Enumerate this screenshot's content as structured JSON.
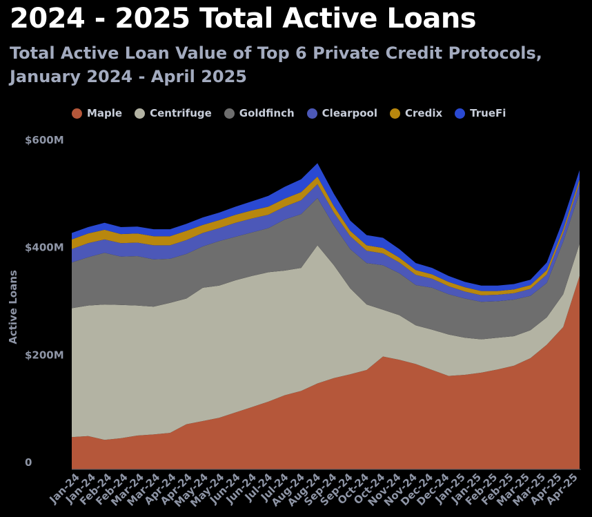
{
  "chart_data": {
    "type": "area",
    "stacked": true,
    "title": "2024 - 2025 Total Active Loans",
    "subtitle": "Total Active Loan Value of Top 6 Private Credit Protocols, January 2024 - April 2025",
    "ylabel": "Active Loans",
    "xlabel": "",
    "ylim": [
      0,
      600
    ],
    "y_unit": "$M",
    "y_ticks": [
      {
        "value": 0,
        "label": "0"
      },
      {
        "value": 200,
        "label": "$200M"
      },
      {
        "value": 400,
        "label": "$400M"
      },
      {
        "value": 600,
        "label": "$600M"
      }
    ],
    "grid": false,
    "legend_position": "top",
    "x_ticks": [
      "Jan-24",
      "Jan-24",
      "Feb-24",
      "Feb-24",
      "Mar-24",
      "Mar-24",
      "Apr-24",
      "Apr-24",
      "May-24",
      "May-24",
      "Jun-24",
      "Jun-24",
      "Jul-24",
      "Jul-24",
      "Aug-24",
      "Aug-24",
      "Sep-24",
      "Sep-24",
      "Oct-24",
      "Oct-24",
      "Nov-24",
      "Nov-24",
      "Dec-24",
      "Dec-24",
      "Jan-25",
      "Jan-25",
      "Feb-25",
      "Feb-25",
      "Mar-25",
      "Mar-25",
      "Apr-25",
      "Apr-25"
    ],
    "series": [
      {
        "name": "Maple",
        "color": "#b5573a",
        "values": [
          60,
          62,
          55,
          58,
          63,
          65,
          68,
          84,
          90,
          96,
          106,
          116,
          126,
          138,
          146,
          160,
          170,
          177,
          185,
          210,
          204,
          196,
          185,
          174,
          176,
          180,
          186,
          193,
          207,
          232,
          265,
          360
        ]
      },
      {
        "name": "Centrifuge",
        "color": "#b3b3a3",
        "values": [
          240,
          243,
          252,
          248,
          242,
          238,
          242,
          234,
          248,
          246,
          246,
          244,
          241,
          232,
          229,
          257,
          210,
          160,
          122,
          87,
          83,
          72,
          75,
          77,
          69,
          62,
          59,
          55,
          52,
          51,
          61,
          60
        ]
      },
      {
        "name": "Goldfinch",
        "color": "#6e6e6e",
        "values": [
          85,
          90,
          96,
          90,
          92,
          88,
          82,
          83,
          77,
          83,
          81,
          81,
          82,
          95,
          100,
          88,
          74,
          73,
          77,
          83,
          78,
          75,
          78,
          75,
          73,
          70,
          68,
          68,
          64,
          64,
          98,
          95
        ]
      },
      {
        "name": "Clearpool",
        "color": "#4c58b8",
        "values": [
          25,
          26,
          25,
          25,
          25,
          26,
          25,
          26,
          25,
          24,
          26,
          26,
          25,
          24,
          26,
          26,
          24,
          24,
          23,
          22,
          20,
          19,
          17,
          15,
          13,
          12,
          12,
          12,
          13,
          16,
          16,
          18
        ]
      },
      {
        "name": "Credix",
        "color": "#b8870e",
        "values": [
          18,
          18,
          18,
          17,
          17,
          17,
          17,
          17,
          15,
          15,
          15,
          15,
          15,
          15,
          15,
          14,
          12,
          10,
          10,
          10,
          9,
          9,
          8,
          8,
          8,
          8,
          7,
          7,
          7,
          8,
          7,
          7
        ]
      },
      {
        "name": "TrueFi",
        "color": "#2a49d2",
        "values": [
          12,
          12,
          13,
          13,
          13,
          13,
          13,
          13,
          14,
          14,
          15,
          17,
          20,
          22,
          24,
          25,
          23,
          19,
          19,
          19,
          16,
          13,
          12,
          11,
          10,
          10,
          10,
          10,
          10,
          14,
          18,
          17
        ]
      }
    ]
  }
}
